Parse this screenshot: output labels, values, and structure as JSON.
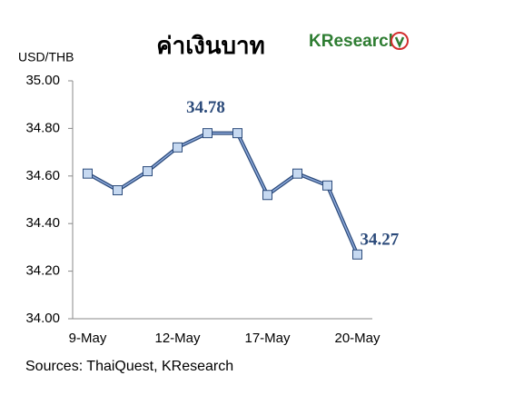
{
  "chart_data": {
    "type": "line",
    "title": "ค่าเงินบาท",
    "logo": "KResearch",
    "y_label": "USD/THB",
    "source": "Sources: ThaiQuest, KResearch",
    "categories": [
      "9-May",
      null,
      null,
      "12-May",
      null,
      null,
      "17-May",
      null,
      null,
      "20-May"
    ],
    "series": [
      {
        "name": "USD/THB",
        "color": "#2b4a7a",
        "values": [
          34.61,
          34.54,
          34.62,
          34.72,
          34.78,
          34.78,
          34.52,
          34.61,
          34.56,
          34.27
        ],
        "value_labels": [
          null,
          null,
          null,
          null,
          "34.78",
          null,
          null,
          null,
          null,
          "34.27"
        ]
      }
    ],
    "ylim": [
      34,
      35
    ],
    "yticks": [
      {
        "value": 34,
        "label": "34.00"
      },
      {
        "value": 34.2,
        "label": "34.20"
      },
      {
        "value": 34.4,
        "label": "34.40"
      },
      {
        "value": 34.6,
        "label": "34.60"
      },
      {
        "value": 34.8,
        "label": "34.80"
      },
      {
        "value": 35,
        "label": "35.00"
      }
    ],
    "grid": false
  }
}
